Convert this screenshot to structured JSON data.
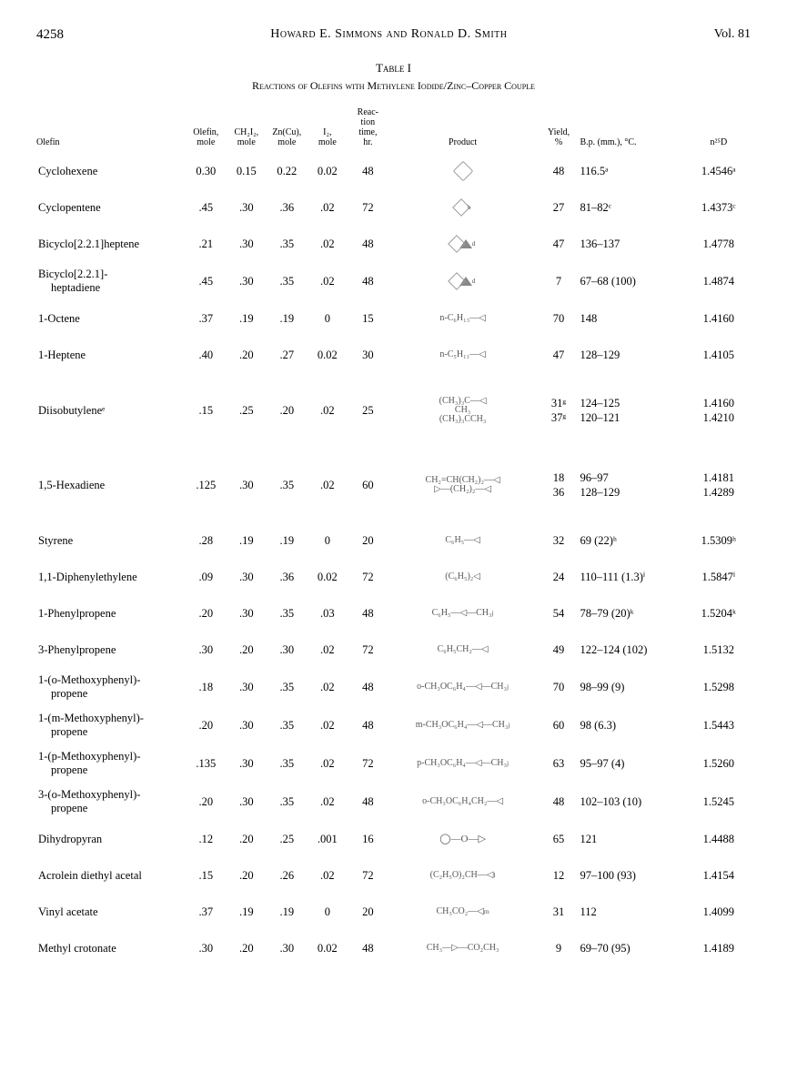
{
  "header": {
    "page": "4258",
    "authors": "Howard E. Simmons and Ronald D. Smith",
    "vol": "Vol. 81"
  },
  "table": {
    "title": "Table I",
    "subtitle": "Reactions of Olefins with Methylene Iodide/Zinc–Copper Couple",
    "columns": {
      "olefin": "Olefin",
      "olefin_mole": "Olefin,\nmole",
      "ch2i2_mole": "CH₂I₂,\nmole",
      "zncu_mole": "Zn(Cu),\nmole",
      "i2_mole": "I₂,\nmole",
      "time": "Reac-\ntion\ntime,\nhr.",
      "product": "Product",
      "yield": "Yield,\n%",
      "bp": "B.p. (mm.), °C.",
      "nd": "n²⁵D"
    },
    "rows": [
      {
        "olefin": "Cyclohexene",
        "om": "0.30",
        "ch": "0.15",
        "zn": "0.22",
        "i2": "0.02",
        "t": "48",
        "product": "hex",
        "y": "48",
        "bp": "116.5ᵃ",
        "nd": "1.4546ᵃ"
      },
      {
        "olefin": "Cyclopentene",
        "om": ".45",
        "ch": ".30",
        "zn": ".36",
        "i2": ".02",
        "t": "72",
        "product": "pent",
        "sup": "b",
        "y": "27",
        "bp": "81–82ᶜ",
        "nd": "1.4373ᶜ"
      },
      {
        "olefin": "Bicyclo[2.2.1]heptene",
        "om": ".21",
        "ch": ".30",
        "zn": ".35",
        "i2": ".02",
        "t": "48",
        "product": "bicyc",
        "sup": "d",
        "y": "47",
        "bp": "136–137",
        "nd": "1.4778"
      },
      {
        "olefin": "Bicyclo[2.2.1]-\nheptadiene",
        "om": ".45",
        "ch": ".30",
        "zn": ".35",
        "i2": ".02",
        "t": "48",
        "product": "bicyc",
        "sup": "d",
        "y": "7",
        "bp": "67–68 (100)",
        "nd": "1.4874"
      },
      {
        "olefin": "1-Octene",
        "om": ".37",
        "ch": ".19",
        "zn": ".19",
        "i2": "0",
        "t": "15",
        "product": "chain",
        "label": "n-C₆H₁₃—◁",
        "y": "70",
        "bp": "148",
        "nd": "1.4160"
      },
      {
        "olefin": "1-Heptene",
        "om": ".40",
        "ch": ".20",
        "zn": ".27",
        "i2": "0.02",
        "t": "30",
        "product": "chain",
        "label": "n-C₅H₁₁—◁",
        "y": "47",
        "bp": "128–129",
        "nd": "1.4105"
      },
      {
        "olefin": "Diisobutyleneᵉ",
        "om": ".15",
        "ch": ".25",
        "zn": ".20",
        "i2": ".02",
        "t": "25",
        "product": "chain",
        "label": "(CH₃)₃C—◁\n       CH₃\n(CH₃)₃CCH₃",
        "y": "31ᵍ\n37ᵍ",
        "bp": "124–125\n120–121",
        "nd": "1.4160\n1.4210",
        "tall": true
      },
      {
        "olefin": "1,5-Hexadiene",
        "om": ".125",
        "ch": ".30",
        "zn": ".35",
        "i2": ".02",
        "t": "60",
        "product": "chain",
        "label": "CH₂=CH(CH₂)₂—◁\n▷—(CH₂)₂—◁",
        "y": "18\n36",
        "bp": "96–97\n128–129",
        "nd": "1.4181\n1.4289",
        "tall": true
      },
      {
        "olefin": "Styrene",
        "om": ".28",
        "ch": ".19",
        "zn": ".19",
        "i2": "0",
        "t": "20",
        "product": "chain",
        "label": "C₆H₅—◁",
        "y": "32",
        "bp": "69 (22)ʰ",
        "nd": "1.5309ʰ"
      },
      {
        "olefin": "1,1-Diphenylethylene",
        "om": ".09",
        "ch": ".30",
        "zn": ".36",
        "i2": "0.02",
        "t": "72",
        "product": "chain",
        "label": "(C₆H₅)₂◁",
        "y": "24",
        "bp": "110–111 (1.3)ⁱ",
        "nd": "1.5847ⁱ"
      },
      {
        "olefin": "1-Phenylpropene",
        "om": ".20",
        "ch": ".30",
        "zn": ".35",
        "i2": ".03",
        "t": "48",
        "product": "chain",
        "label": "C₆H₅—◁—CH₃",
        "sup": "j",
        "y": "54",
        "bp": "78–79 (20)ᵏ",
        "nd": "1.5204ᵏ"
      },
      {
        "olefin": "3-Phenylpropene",
        "om": ".30",
        "ch": ".20",
        "zn": ".30",
        "i2": ".02",
        "t": "72",
        "product": "chain",
        "label": "C₆H₅CH₂—◁",
        "y": "49",
        "bp": "122–124 (102)",
        "nd": "1.5132"
      },
      {
        "olefin": "1-(o-Methoxyphenyl)-\npropene",
        "om": ".18",
        "ch": ".30",
        "zn": ".35",
        "i2": ".02",
        "t": "48",
        "product": "chain",
        "label": "o-CH₃OC₆H₄—◁—CH₃",
        "sup": "j",
        "y": "70",
        "bp": "98–99 (9)",
        "nd": "1.5298"
      },
      {
        "olefin": "1-(m-Methoxyphenyl)-\npropene",
        "om": ".20",
        "ch": ".30",
        "zn": ".35",
        "i2": ".02",
        "t": "48",
        "product": "chain",
        "label": "m-CH₃OC₆H₄—◁—CH₃",
        "sup": "j",
        "y": "60",
        "bp": "98 (6.3)",
        "nd": "1.5443"
      },
      {
        "olefin": "1-(p-Methoxyphenyl)-\npropene",
        "om": ".135",
        "ch": ".30",
        "zn": ".35",
        "i2": ".02",
        "t": "72",
        "product": "chain",
        "label": "p-CH₃OC₆H₄—◁—CH₃",
        "sup": "j",
        "y": "63",
        "bp": "95–97 (4)",
        "nd": "1.5260"
      },
      {
        "olefin": "3-(o-Methoxyphenyl)-\npropene",
        "om": ".20",
        "ch": ".30",
        "zn": ".35",
        "i2": ".02",
        "t": "48",
        "product": "chain",
        "label": "o-CH₃OC₆H₄CH₂—◁",
        "y": "48",
        "bp": "102–103 (10)",
        "nd": "1.5245"
      },
      {
        "olefin": "Dihydropyran",
        "om": ".12",
        "ch": ".20",
        "zn": ".25",
        "i2": ".001",
        "t": "16",
        "product": "ring",
        "label": "◯—O—▷",
        "y": "65",
        "bp": "121",
        "nd": "1.4488"
      },
      {
        "olefin": "Acrolein diethyl acetal",
        "om": ".15",
        "ch": ".20",
        "zn": ".26",
        "i2": ".02",
        "t": "72",
        "product": "chain",
        "label": "(C₂H₅O)₂CH—◁",
        "sup": "l",
        "y": "12",
        "bp": "97–100 (93)",
        "nd": "1.4154"
      },
      {
        "olefin": "Vinyl acetate",
        "om": ".37",
        "ch": ".19",
        "zn": ".19",
        "i2": "0",
        "t": "20",
        "product": "chain",
        "label": "CH₃CO₂—◁",
        "sup": "m",
        "y": "31",
        "bp": "112",
        "nd": "1.4099"
      },
      {
        "olefin": "Methyl crotonate",
        "om": ".30",
        "ch": ".20",
        "zn": ".30",
        "i2": "0.02",
        "t": "48",
        "product": "chain",
        "label": "CH₃—▷—CO₂CH₃",
        "y": "9",
        "bp": "69–70 (95)",
        "nd": "1.4189"
      }
    ]
  }
}
